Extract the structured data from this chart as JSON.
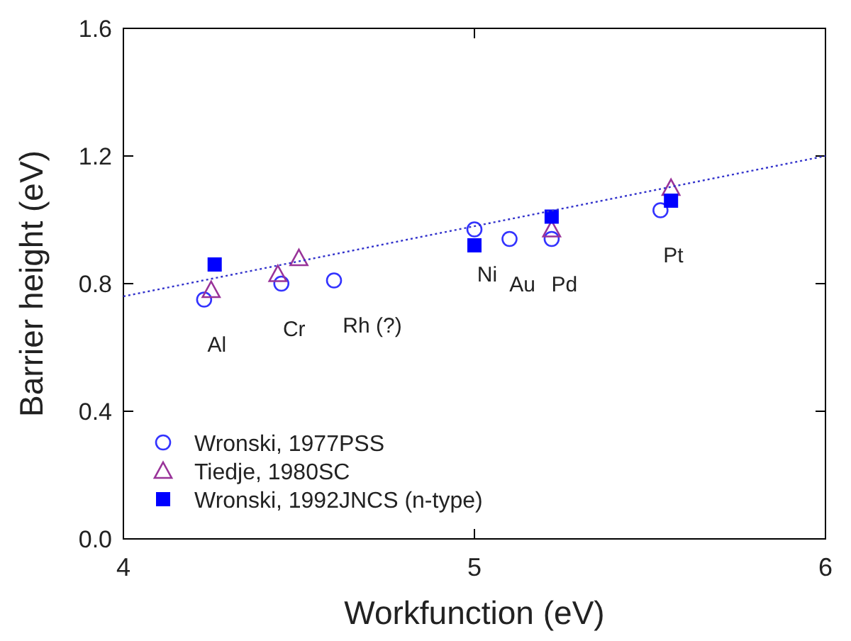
{
  "chart_data": {
    "type": "scatter",
    "xlabel": "Workfunction (eV)",
    "ylabel": "Barrier height (eV)",
    "xlim": [
      4,
      6
    ],
    "xticks": [
      4,
      5,
      6
    ],
    "ylim": [
      0,
      1.6
    ],
    "yticks": [
      {
        "value": 0,
        "label": "0.0"
      },
      0.4,
      0.8,
      1.2,
      1.6
    ],
    "grid": false,
    "legend": "bottom left",
    "series": [
      {
        "name": "Wronski, 1977PSS",
        "color": "#3333ff",
        "marker": "circle",
        "x": [
          4.23,
          4.45,
          4.6,
          5.0,
          5.1,
          5.22,
          5.53
        ],
        "values": [
          0.75,
          0.8,
          0.81,
          0.97,
          0.94,
          0.94,
          1.03
        ]
      },
      {
        "name": "Tiedje, 1980SC",
        "color": "#993399",
        "marker": "triangle",
        "x": [
          4.25,
          4.44,
          4.5,
          5.22,
          5.56
        ],
        "values": [
          0.78,
          0.83,
          0.88,
          0.97,
          1.1
        ]
      },
      {
        "name": "Wronski, 1992JNCS (n-type)",
        "color": "#0000ff",
        "marker": "square",
        "x": [
          4.26,
          5.0,
          5.22,
          5.56
        ],
        "values": [
          0.86,
          0.92,
          1.01,
          1.06
        ]
      },
      {
        "type": "line",
        "color": "#3333cc",
        "line_style": "dotted",
        "marker": "none",
        "x": [
          4,
          6
        ],
        "values": [
          0.76,
          1.2
        ]
      }
    ],
    "annotations": [
      "Al",
      "Cr",
      "Rh (?)",
      "Ni",
      "Au",
      "Pd",
      "Pt"
    ]
  }
}
